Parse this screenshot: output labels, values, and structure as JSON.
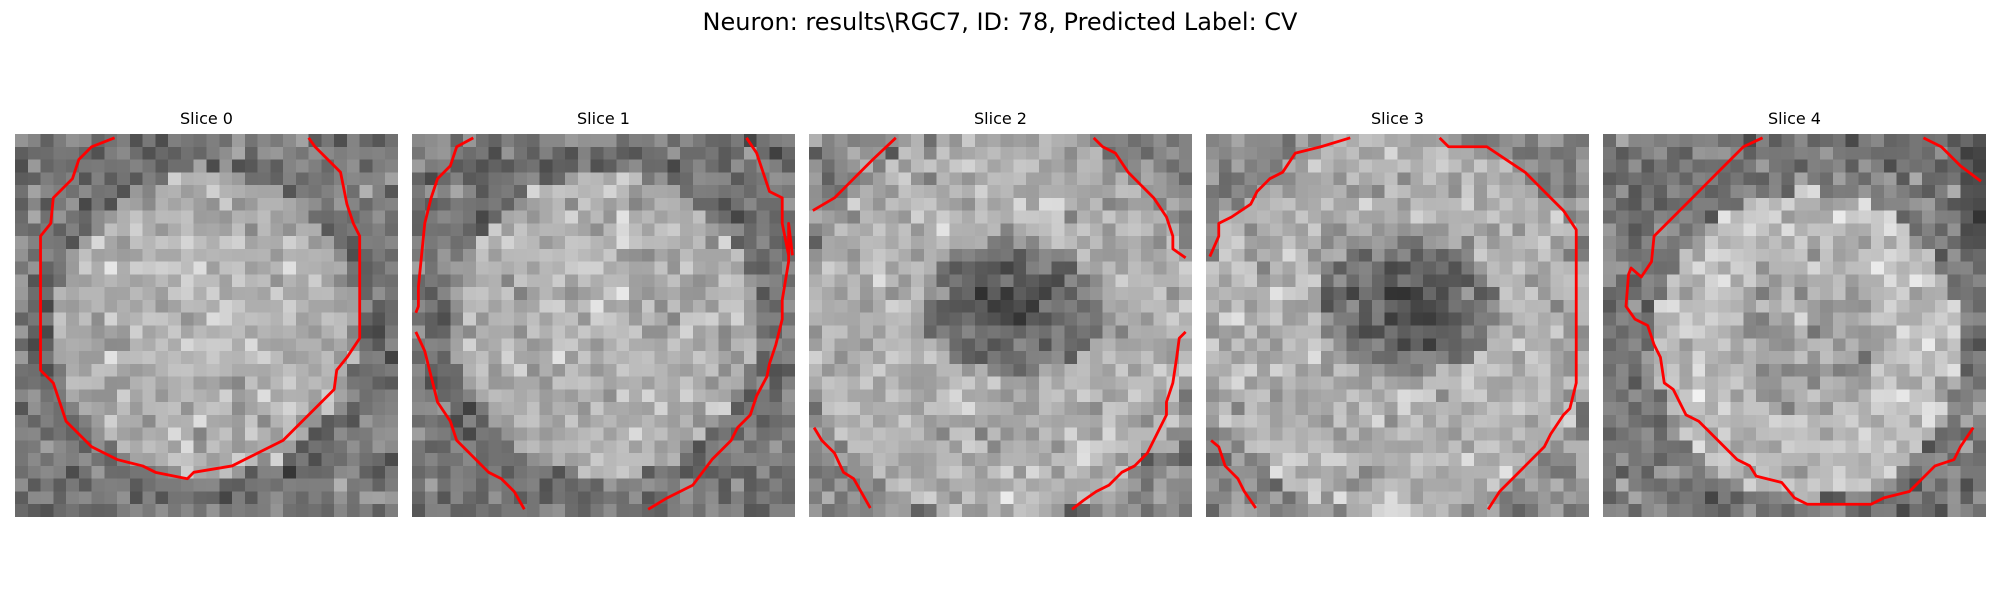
{
  "figure": {
    "title": "Neuron: results\\RGC7, ID: 78, Predicted Label: CV",
    "contour_color": "#ff0000",
    "colormap": "grayscale",
    "slices": [
      {
        "title": "Slice 0",
        "pattern": "bright-disk"
      },
      {
        "title": "Slice 1",
        "pattern": "bright-disk"
      },
      {
        "title": "Slice 2",
        "pattern": "ring-dark-center"
      },
      {
        "title": "Slice 3",
        "pattern": "ring-dark-center"
      },
      {
        "title": "Slice 4",
        "pattern": "bright-ring-offset"
      }
    ]
  }
}
